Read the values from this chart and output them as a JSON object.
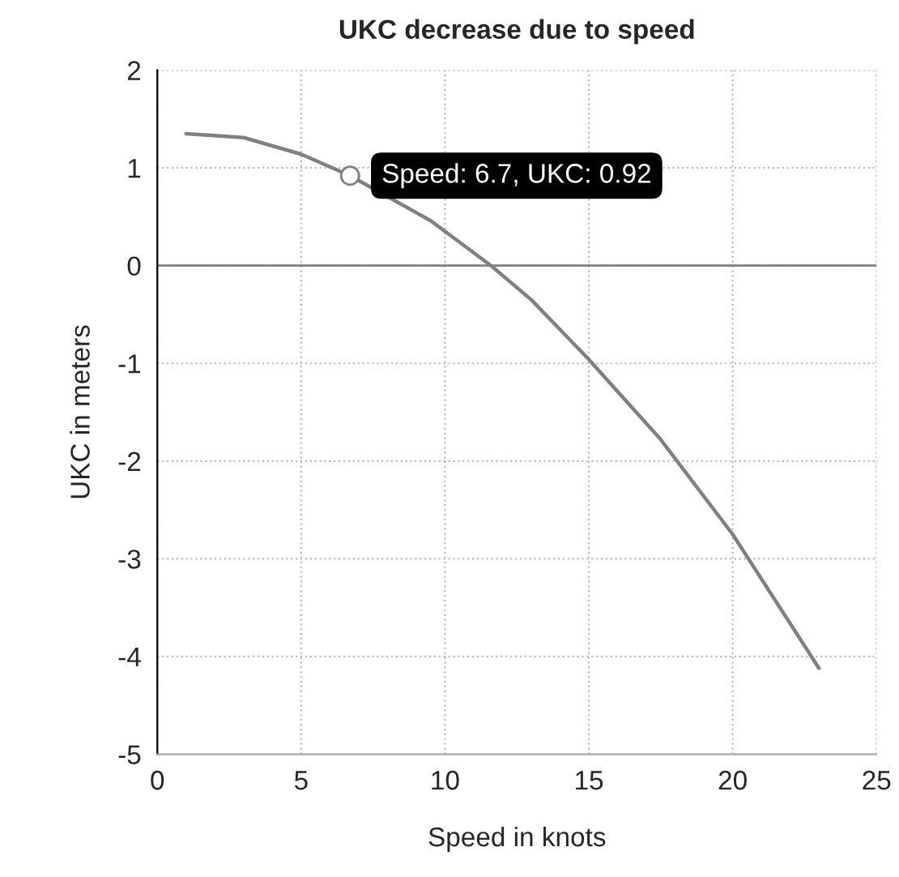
{
  "chart_data": {
    "type": "line",
    "title": "UKC decrease due to speed",
    "xlabel": "Speed in knots",
    "ylabel": "UKC in meters",
    "x": [
      1,
      3,
      5,
      6.7,
      9.5,
      11.6,
      13,
      15,
      17.5,
      20,
      23
    ],
    "series": [
      {
        "color": "#808080",
        "values": [
          1.35,
          1.31,
          1.14,
          0.92,
          0.46,
          0,
          -0.35,
          -0.96,
          -1.78,
          -2.75,
          -4.12
        ]
      }
    ],
    "xlim": [
      0,
      25
    ],
    "xticks": [
      0,
      5,
      10,
      15,
      20,
      25
    ],
    "ylim": [
      -5,
      2
    ],
    "yticks": [
      -5,
      -4,
      -3,
      -2,
      -1,
      0,
      1,
      2
    ],
    "grid": true,
    "legend": false,
    "marker": "none",
    "line_style": "solid",
    "ref_lines": [
      {
        "axis": "y",
        "value": 0,
        "color": "#808080",
        "line_style": "solid"
      }
    ],
    "annotations": [
      {
        "text": "Speed: 6.7, UKC: 0.92",
        "x": 6.7,
        "y": 0.92
      }
    ]
  }
}
